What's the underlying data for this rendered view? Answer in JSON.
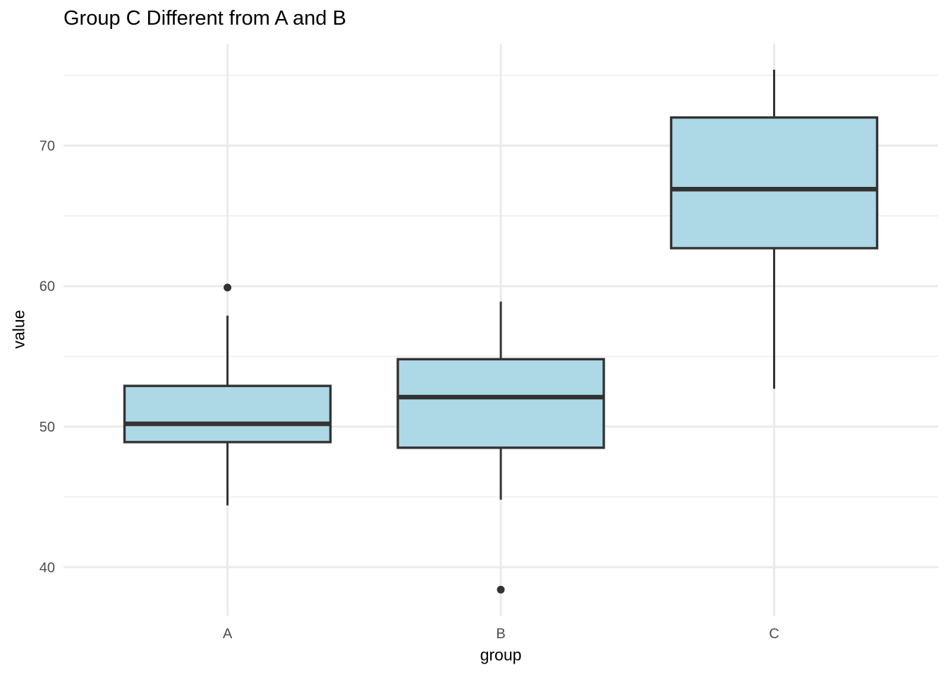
{
  "chart_data": {
    "type": "boxplot",
    "title": "Group C Different from A and B",
    "xlabel": "group",
    "ylabel": "value",
    "categories": [
      "A",
      "B",
      "C"
    ],
    "y_major_ticks": [
      40,
      50,
      60,
      70
    ],
    "y_minor_ticks": [
      45,
      55,
      65,
      75
    ],
    "ylim": [
      36.55,
      77.25
    ],
    "grid": true,
    "legend_position": "none",
    "series": [
      {
        "group": "A",
        "whisker_low": 44.4,
        "q1": 48.9,
        "median": 50.2,
        "q3": 52.9,
        "whisker_high": 57.9,
        "outliers": [
          59.9
        ]
      },
      {
        "group": "B",
        "whisker_low": 44.8,
        "q1": 48.5,
        "median": 52.1,
        "q3": 54.8,
        "whisker_high": 58.9,
        "outliers": [
          38.4
        ]
      },
      {
        "group": "C",
        "whisker_low": 52.7,
        "q1": 62.7,
        "median": 66.9,
        "q3": 72.0,
        "whisker_high": 75.4,
        "outliers": []
      }
    ],
    "colors": {
      "box_fill": "#ADD8E6",
      "box_stroke": "#333333",
      "median_stroke": "#333333",
      "whisker_stroke": "#333333",
      "outlier_fill": "#333333",
      "grid_major": "#EBEBEB",
      "grid_minor": "#F1F1F1",
      "tick_label": "#4D4D4D",
      "axis_title": "#000000",
      "title": "#000000",
      "background": "#FFFFFF"
    }
  }
}
